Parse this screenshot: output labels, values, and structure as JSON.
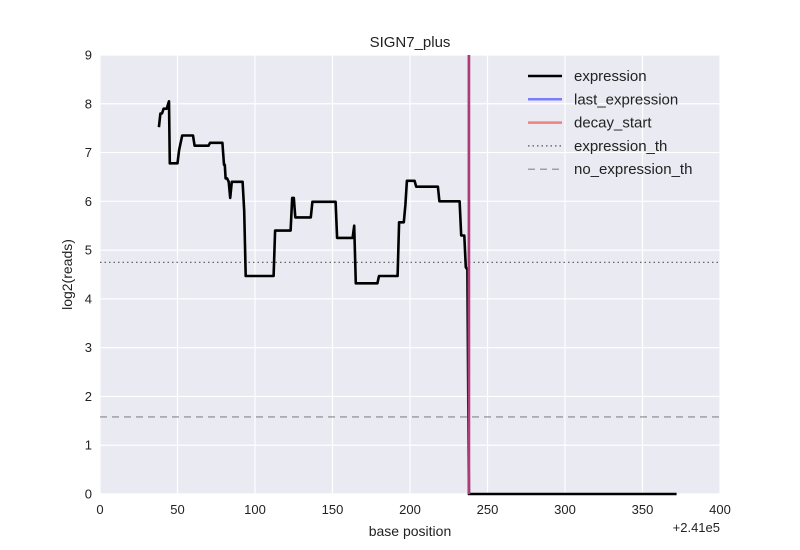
{
  "chart_data": {
    "type": "line",
    "title": "SIGN7_plus",
    "xlabel": "base position",
    "ylabel": "log2(reads)",
    "x_offset_label": "+2.41e5",
    "xlim": [
      0,
      400
    ],
    "ylim": [
      0,
      9
    ],
    "xticks": [
      0,
      50,
      100,
      150,
      200,
      250,
      300,
      350,
      400
    ],
    "yticks": [
      0,
      1,
      2,
      3,
      4,
      5,
      6,
      7,
      8,
      9
    ],
    "grid": true,
    "background": "#eaeaf2",
    "legend_position": "top-right",
    "series": [
      {
        "name": "expression",
        "color": "#000000",
        "style": "solid",
        "x": [
          38,
          39,
          40,
          41,
          42,
          43,
          44,
          44.5,
          45,
          50,
          51,
          53,
          60,
          61,
          62,
          70,
          71,
          72,
          79,
          80,
          80.5,
          81,
          82,
          83,
          84,
          85,
          86,
          87,
          92,
          93,
          94,
          112,
          113,
          123,
          124,
          125,
          126,
          127,
          136,
          137,
          152,
          153,
          163,
          164,
          165,
          166,
          179,
          180,
          192,
          193,
          196,
          197,
          198,
          199,
          203,
          204,
          218,
          219,
          232,
          233,
          235,
          236,
          237,
          238,
          239,
          372
        ],
        "y": [
          7.52,
          7.8,
          7.8,
          7.9,
          7.9,
          7.9,
          8.0,
          8.05,
          6.78,
          6.78,
          7.05,
          7.35,
          7.35,
          7.14,
          7.14,
          7.14,
          7.2,
          7.2,
          7.2,
          6.75,
          6.75,
          6.47,
          6.47,
          6.4,
          6.07,
          6.4,
          6.4,
          6.4,
          6.4,
          5.8,
          4.47,
          4.47,
          5.4,
          5.4,
          6.07,
          6.07,
          5.67,
          5.67,
          5.67,
          5.99,
          5.99,
          5.25,
          5.25,
          5.5,
          4.32,
          4.32,
          4.32,
          4.47,
          4.47,
          5.57,
          5.57,
          5.93,
          6.42,
          6.42,
          6.42,
          6.3,
          6.3,
          6.0,
          6.0,
          5.3,
          5.3,
          4.65,
          4.6,
          0.0,
          0.0,
          0.0
        ]
      },
      {
        "name": "last_expression",
        "color": "#7b7bff",
        "style": "vertical",
        "x_value": 238
      },
      {
        "name": "decay_start",
        "color": "#f08080",
        "style": "vertical",
        "x_value": 238
      },
      {
        "name": "expression_th",
        "color": "#555555",
        "style": "dotted",
        "y_value": 4.75
      },
      {
        "name": "no_expression_th",
        "color": "#888888",
        "style": "dashed",
        "y_value": 1.58
      }
    ],
    "overlap_line_color": "#b03b7a"
  }
}
